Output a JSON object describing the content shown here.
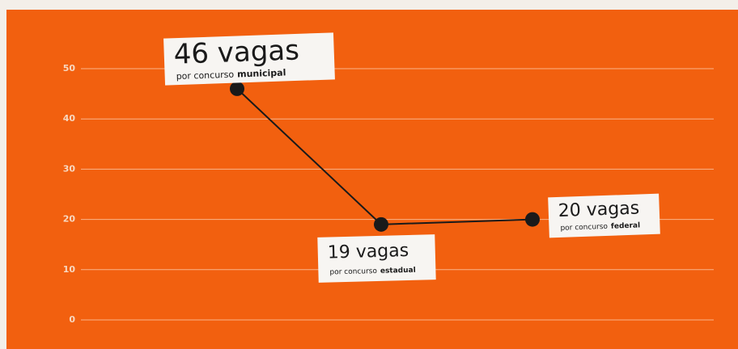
{
  "chart_data": {
    "type": "line",
    "categories": [
      null,
      null,
      null
    ],
    "values": [
      46,
      19,
      20
    ],
    "value_labels": [
      "46 vagas",
      "19 vagas",
      "20 vagas"
    ],
    "annotations": [
      {
        "text": "por concurso",
        "emphasis": "municipal"
      },
      {
        "text": "por concurso",
        "emphasis": "estadual"
      },
      {
        "text": "por concurso",
        "emphasis": "federal"
      }
    ],
    "color": "#1a1a1a",
    "ylim": [
      0,
      50
    ],
    "yticks": [
      0,
      10,
      20,
      30,
      40,
      50
    ],
    "grid": true
  }
}
